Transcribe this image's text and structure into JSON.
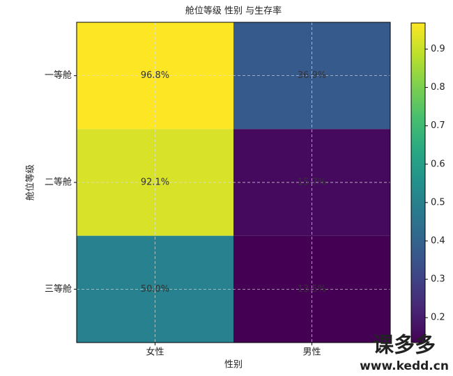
{
  "chart_data": {
    "type": "heatmap",
    "title": "舱位等级 性别 与生存率",
    "xlabel": "性别",
    "ylabel": "舱位等级",
    "x_categories": [
      "女性",
      "男性"
    ],
    "y_categories": [
      "一等舱",
      "二等舱",
      "三等舱"
    ],
    "values": [
      [
        0.968,
        0.369
      ],
      [
        0.921,
        0.157
      ],
      [
        0.5,
        0.135
      ]
    ],
    "value_labels": [
      [
        "96.8%",
        "36.9%"
      ],
      [
        "92.1%",
        "15.7%"
      ],
      [
        "50.0%",
        "13.5%"
      ]
    ],
    "colormap": "viridis",
    "clim": [
      0.135,
      0.968
    ],
    "cticks": [
      0.2,
      0.3,
      0.4,
      0.5,
      0.6,
      0.7,
      0.8,
      0.9
    ],
    "grid": true,
    "watermark": [
      "课多多",
      "www.kedd.cn"
    ]
  }
}
